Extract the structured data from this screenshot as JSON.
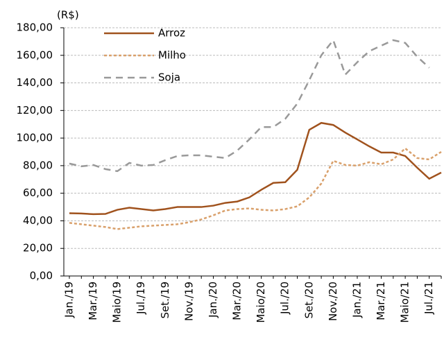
{
  "chart_data": {
    "type": "line",
    "unit_label": "(R$)",
    "categories": [
      "Jan./19",
      null,
      "Mar./19",
      null,
      "Maio/19",
      null,
      "Jul./19",
      null,
      "Set./19",
      null,
      "Nov./19",
      null,
      "Jan./20",
      null,
      "Mar./20",
      null,
      "Maio/20",
      null,
      "Jul./20",
      null,
      "Set./20",
      null,
      "Nov./20",
      null,
      "Jan./21",
      null,
      "Mar./21",
      null,
      "Maio/21",
      null,
      "Jul./21",
      null
    ],
    "series": [
      {
        "name": "Arroz",
        "color": "#a0521d",
        "style": "solid",
        "values": [
          45.5,
          45.3,
          44.8,
          45,
          48,
          49.5,
          48.5,
          47.5,
          48.5,
          50,
          50,
          50,
          51,
          53,
          54,
          57,
          62.5,
          67.5,
          68,
          77,
          106,
          111,
          109.5,
          104,
          99,
          94,
          89.5,
          89.5,
          87,
          78.5,
          70.5,
          75
        ]
      },
      {
        "name": "Milho",
        "color": "#d9a06b",
        "style": "dotted",
        "values": [
          38.5,
          37.5,
          36.5,
          35.5,
          34,
          35,
          36,
          36.5,
          37,
          37.5,
          39,
          41,
          44,
          47.5,
          48.5,
          49,
          48,
          47.5,
          48.5,
          50.5,
          57,
          67,
          83.5,
          80.5,
          80,
          82.5,
          81,
          84.5,
          92.5,
          85.5,
          84.5,
          90
        ]
      },
      {
        "name": "Soja",
        "color": "#999999",
        "style": "dashed",
        "values": [
          81.5,
          79.5,
          80.5,
          77.5,
          76,
          82,
          80,
          80.5,
          84,
          87,
          87.5,
          87.5,
          86.5,
          85.5,
          91,
          99,
          108,
          108,
          114,
          125,
          142,
          160,
          171,
          146,
          155,
          163,
          167,
          171,
          169,
          159,
          151,
          null
        ]
      }
    ],
    "ylim": [
      0,
      180
    ],
    "yticks": [
      {
        "value": 0,
        "label": "0,00"
      },
      {
        "value": 20,
        "label": "20,00"
      },
      {
        "value": 40,
        "label": "40,00"
      },
      {
        "value": 60,
        "label": "60,00"
      },
      {
        "value": 80,
        "label": "80,00"
      },
      {
        "value": 100,
        "label": "100,00"
      },
      {
        "value": 120,
        "label": "120,00"
      },
      {
        "value": 140,
        "label": "140,00"
      },
      {
        "value": 160,
        "label": "160,00"
      },
      {
        "value": 180,
        "label": "180,00"
      }
    ],
    "grid": true,
    "legend": "top-left"
  }
}
